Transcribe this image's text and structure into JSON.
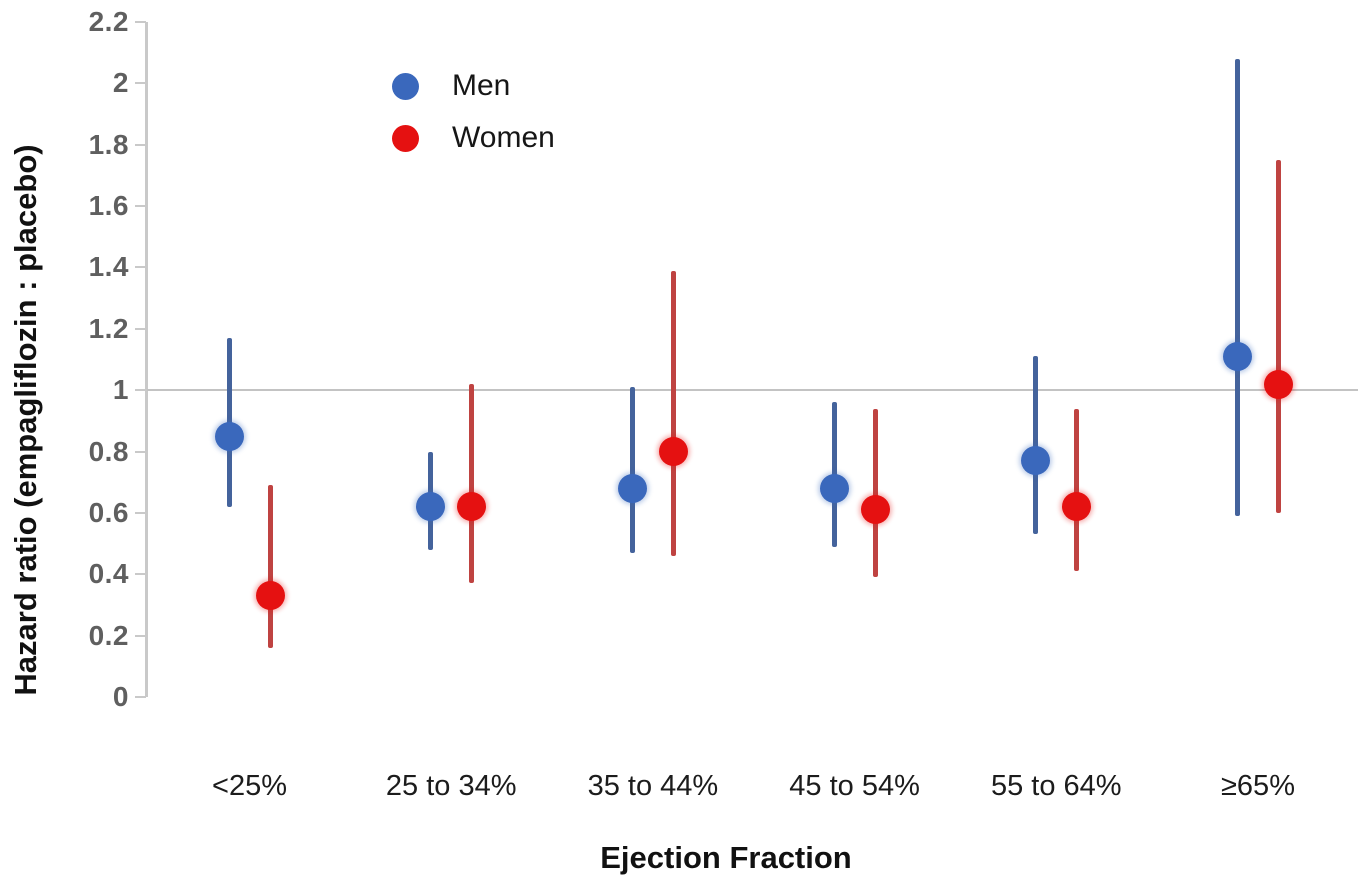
{
  "chart_data": {
    "type": "scatter",
    "subtype": "forest-plot-with-error-bars",
    "title": "",
    "xlabel": "Ejection Fraction",
    "ylabel": "Hazard ratio (empagliflozin : placebo)",
    "ylim": [
      0,
      2.2
    ],
    "ytick_values": [
      0,
      0.2,
      0.4,
      0.6,
      0.8,
      1,
      1.2,
      1.4,
      1.6,
      1.8,
      2,
      2.2
    ],
    "ytick_labels": [
      "0",
      "0.2",
      "0.4",
      "0.6",
      "0.8",
      "1",
      "1.2",
      "1.4",
      "1.6",
      "1.8",
      "2",
      "2.2"
    ],
    "reference_line_y": 1,
    "grid": "none (single horizontal reference line at y=1)",
    "legend_position": "inside top-left",
    "categories": [
      "<25%",
      "25 to 34%",
      "35 to 44%",
      "45 to 54%",
      "55 to 64%",
      "≥65%"
    ],
    "series": [
      {
        "name": "Men",
        "marker_color": "#3a68bc",
        "line_color": "#44639c",
        "hr": [
          0.85,
          0.62,
          0.68,
          0.68,
          0.77,
          1.11
        ],
        "ci_low": [
          0.62,
          0.48,
          0.47,
          0.49,
          0.53,
          0.59
        ],
        "ci_high": [
          1.17,
          0.8,
          1.01,
          0.96,
          1.11,
          2.08
        ]
      },
      {
        "name": "Women",
        "marker_color": "#e51111",
        "line_color": "#bf4341",
        "hr": [
          0.33,
          0.62,
          0.8,
          0.61,
          0.62,
          1.02
        ],
        "ci_low": [
          0.16,
          0.37,
          0.46,
          0.39,
          0.41,
          0.6
        ],
        "ci_high": [
          0.69,
          1.02,
          1.39,
          0.94,
          0.94,
          1.75
        ]
      }
    ],
    "axis_colors": {
      "axis_line": "#c9c9c9",
      "tick_label": "#5f5f5f",
      "reference_line": "#c3c3c3",
      "category_label": "#1c1c1c",
      "axis_title": "#111111"
    }
  }
}
